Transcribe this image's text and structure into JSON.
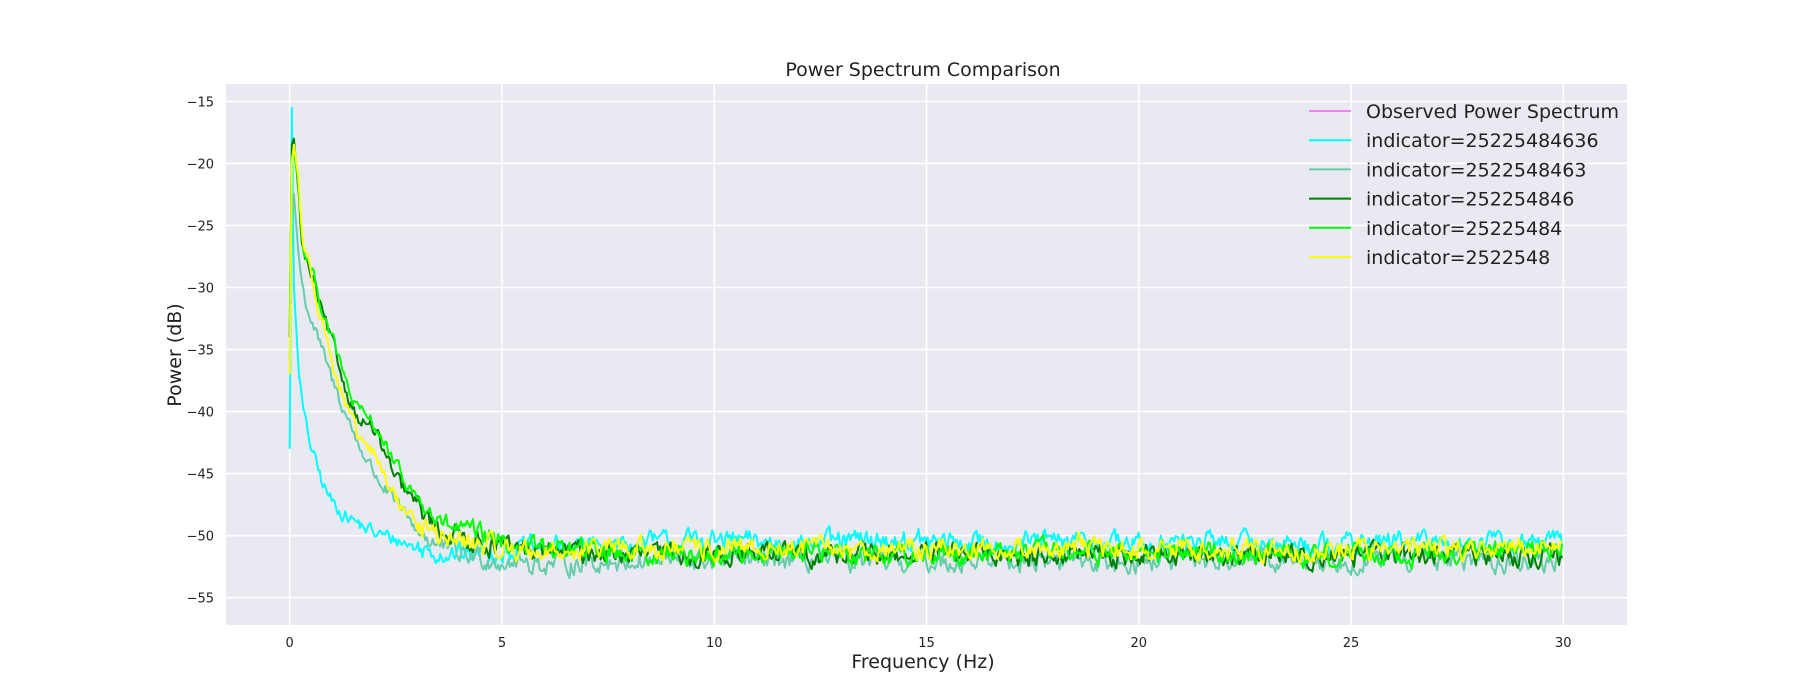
{
  "chart_data": {
    "type": "line",
    "title": "Power Spectrum Comparison",
    "xlabel": "Frequency (Hz)",
    "ylabel": "Power (dB)",
    "xlim": [
      -1.5,
      31.5
    ],
    "ylim": [
      -57.2,
      -13.6
    ],
    "x_ticks": [
      0,
      5,
      10,
      15,
      20,
      25,
      30
    ],
    "y_ticks": [
      -55,
      -50,
      -45,
      -40,
      -35,
      -30,
      -25,
      -20,
      -15
    ],
    "x_tick_labels": [
      "0",
      "5",
      "10",
      "15",
      "20",
      "25",
      "30"
    ],
    "y_tick_labels": [
      "−55",
      "−50",
      "−45",
      "−40",
      "−35",
      "−30",
      "−25",
      "−20",
      "−15"
    ],
    "grid": true,
    "legend_position": "top-right",
    "series": [
      {
        "name": "Observed Power Spectrum",
        "color": "#ee82ee",
        "x": [],
        "y": []
      },
      {
        "name": "indicator=25225484636",
        "color": "#00ffff",
        "x": [
          0,
          0.05,
          0.1,
          0.2,
          0.3,
          0.4,
          0.6,
          0.8,
          1.0,
          1.3,
          1.6,
          2.0,
          2.5,
          3.0,
          3.5,
          4.0,
          5.0,
          6.0,
          8.0,
          10.0,
          12.0,
          14.0,
          16.0,
          18.0,
          20.0,
          22.0,
          24.0,
          26.0,
          28.0,
          30.0
        ],
        "y": [
          -43.0,
          -15.5,
          -30.0,
          -36.0,
          -39.5,
          -41.5,
          -44.0,
          -46.0,
          -47.3,
          -48.3,
          -49.0,
          -49.8,
          -50.3,
          -51.0,
          -51.3,
          -51.5,
          -51.2,
          -51.0,
          -50.6,
          -50.4,
          -50.6,
          -50.4,
          -50.6,
          -50.5,
          -50.6,
          -50.5,
          -50.7,
          -50.5,
          -50.6,
          -50.6
        ]
      },
      {
        "name": "indicator=2522548463",
        "color": "#66cdaa",
        "x": [
          0,
          0.05,
          0.1,
          0.2,
          0.3,
          0.4,
          0.6,
          0.8,
          1.0,
          1.3,
          1.6,
          2.0,
          2.5,
          3.0,
          3.5,
          4.0,
          5.0,
          6.0,
          8.0,
          10.0,
          12.0,
          14.0,
          16.0,
          18.0,
          20.0,
          22.0,
          24.0,
          26.0,
          28.0,
          30.0
        ],
        "y": [
          -36.0,
          -24.0,
          -22.5,
          -27.0,
          -30.0,
          -31.5,
          -33.5,
          -35.5,
          -37.5,
          -40.0,
          -42.5,
          -45.0,
          -47.5,
          -49.5,
          -50.8,
          -51.5,
          -52.0,
          -52.3,
          -52.0,
          -52.0,
          -52.0,
          -52.2,
          -52.0,
          -52.0,
          -52.1,
          -52.0,
          -52.0,
          -51.9,
          -52.0,
          -52.1
        ]
      },
      {
        "name": "indicator=252254846",
        "color": "#008000",
        "x": [
          0,
          0.05,
          0.1,
          0.2,
          0.3,
          0.4,
          0.6,
          0.8,
          1.0,
          1.3,
          1.6,
          2.0,
          2.5,
          3.0,
          3.5,
          4.0,
          5.0,
          6.0,
          8.0,
          10.0,
          12.0,
          14.0,
          16.0,
          18.0,
          20.0,
          22.0,
          24.0,
          26.0,
          28.0,
          30.0
        ],
        "y": [
          -34.0,
          -18.5,
          -18.0,
          -22.0,
          -27.0,
          -28.0,
          -30.0,
          -32.5,
          -34.5,
          -38.0,
          -40.5,
          -41.5,
          -45.5,
          -47.5,
          -49.5,
          -50.0,
          -51.0,
          -51.2,
          -51.5,
          -51.5,
          -51.4,
          -51.6,
          -51.5,
          -51.5,
          -51.6,
          -51.5,
          -51.6,
          -51.5,
          -51.5,
          -51.6
        ]
      },
      {
        "name": "indicator=25225484",
        "color": "#00ff00",
        "x": [
          0,
          0.05,
          0.1,
          0.2,
          0.3,
          0.4,
          0.6,
          0.8,
          1.0,
          1.3,
          1.6,
          2.0,
          2.5,
          3.0,
          3.5,
          4.0,
          5.0,
          6.0,
          8.0,
          10.0,
          12.0,
          14.0,
          16.0,
          18.0,
          20.0,
          22.0,
          24.0,
          26.0,
          28.0,
          30.0
        ],
        "y": [
          -33.0,
          -19.5,
          -19.0,
          -21.5,
          -26.5,
          -27.5,
          -29.5,
          -32.0,
          -34.0,
          -37.5,
          -40.0,
          -41.0,
          -44.5,
          -47.0,
          -49.0,
          -49.5,
          -50.5,
          -51.0,
          -51.3,
          -51.6,
          -51.2,
          -51.5,
          -51.4,
          -51.3,
          -51.5,
          -51.4,
          -51.5,
          -51.4,
          -51.3,
          -51.2
        ]
      },
      {
        "name": "indicator=2522548",
        "color": "#ffff00",
        "x": [
          0,
          0.05,
          0.1,
          0.2,
          0.3,
          0.4,
          0.6,
          0.8,
          1.0,
          1.3,
          1.6,
          2.0,
          2.5,
          3.0,
          3.5,
          4.0,
          5.0,
          6.0,
          8.0,
          10.0,
          12.0,
          14.0,
          16.0,
          18.0,
          20.0,
          22.0,
          24.0,
          26.0,
          28.0,
          30.0
        ],
        "y": [
          -37.0,
          -20.0,
          -18.5,
          -21.0,
          -26.0,
          -27.5,
          -30.0,
          -33.0,
          -36.0,
          -39.5,
          -42.0,
          -43.5,
          -47.0,
          -49.0,
          -50.0,
          -50.5,
          -51.0,
          -51.3,
          -51.0,
          -51.2,
          -51.0,
          -51.1,
          -51.0,
          -51.0,
          -51.1,
          -51.0,
          -51.2,
          -51.0,
          -51.0,
          -51.1
        ]
      }
    ]
  }
}
